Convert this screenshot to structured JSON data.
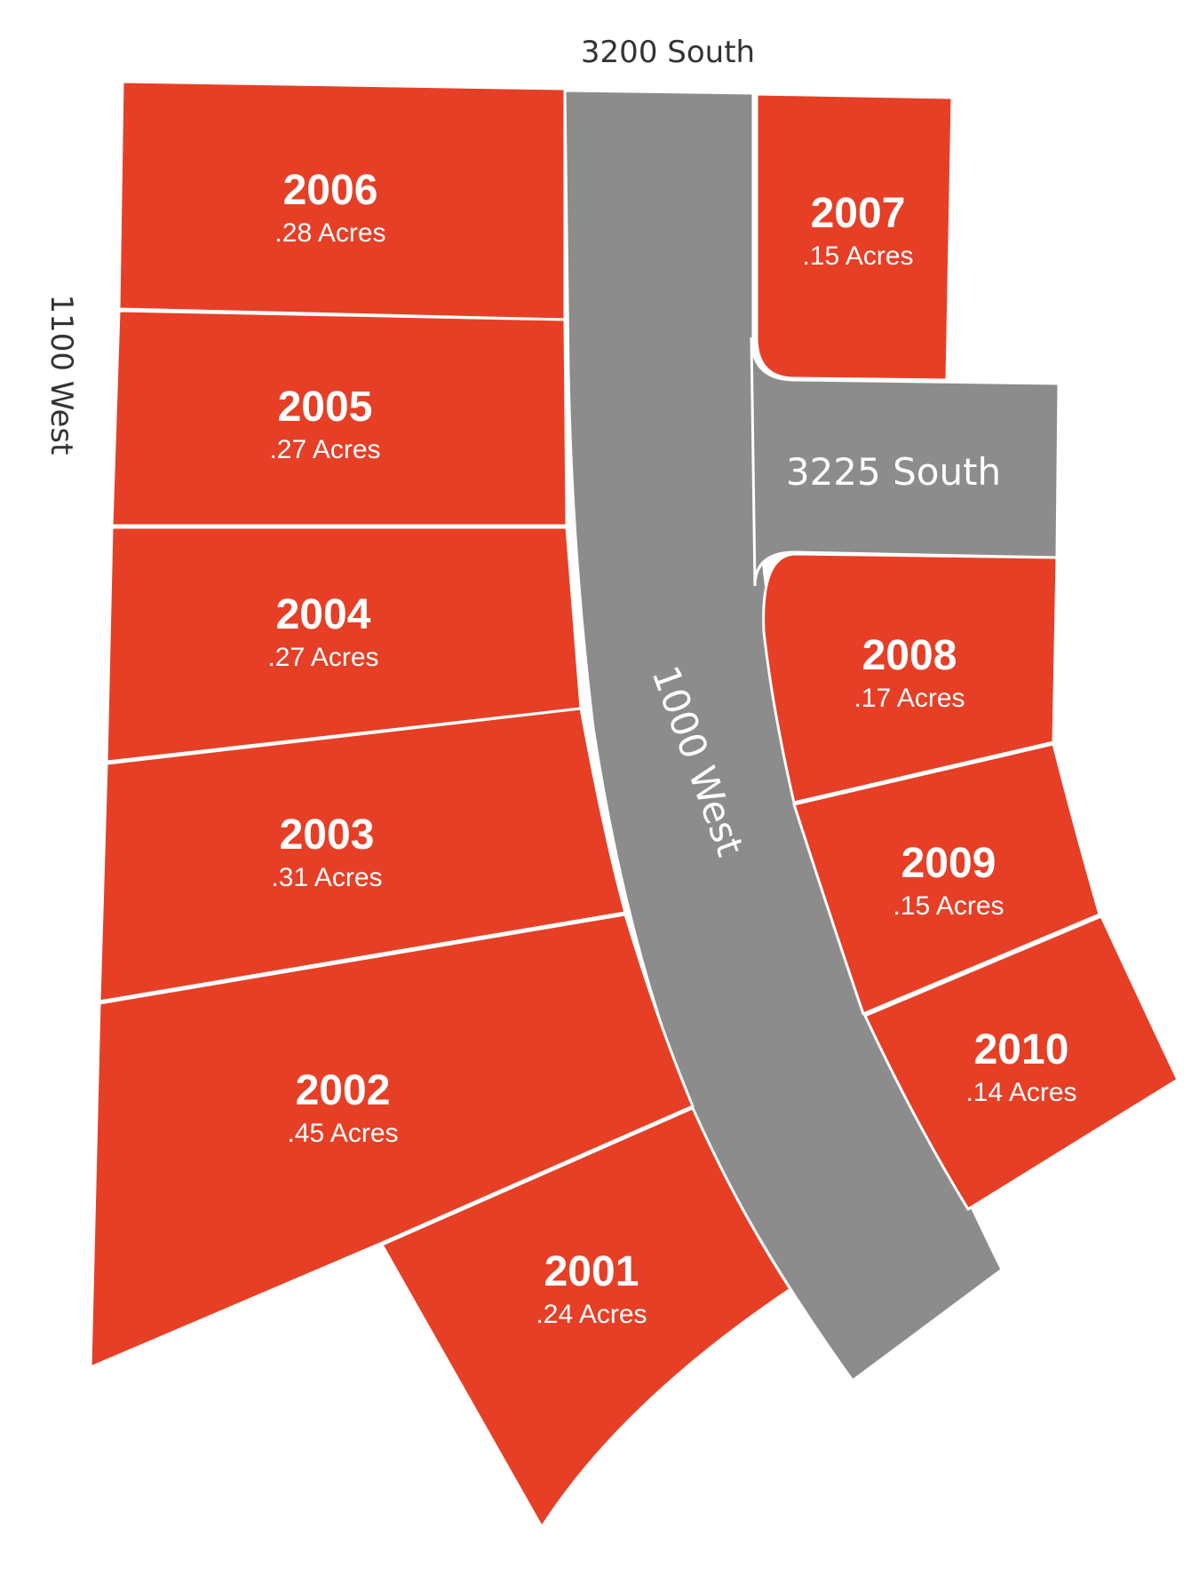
{
  "streets": {
    "north": "3200 South",
    "west": "1100 West",
    "main": "1000 West",
    "cross": "3225 South"
  },
  "colors": {
    "lot": "#e63f26",
    "road": "#8c8c8c",
    "text": "#ffffff"
  },
  "lots": [
    {
      "id": "2006",
      "area": ".28 Acres"
    },
    {
      "id": "2005",
      "area": ".27 Acres"
    },
    {
      "id": "2004",
      "area": ".27 Acres"
    },
    {
      "id": "2003",
      "area": ".31 Acres"
    },
    {
      "id": "2002",
      "area": ".45 Acres"
    },
    {
      "id": "2001",
      "area": ".24 Acres"
    },
    {
      "id": "2007",
      "area": ".15 Acres"
    },
    {
      "id": "2008",
      "area": ".17 Acres"
    },
    {
      "id": "2009",
      "area": ".15 Acres"
    },
    {
      "id": "2010",
      "area": ".14 Acres"
    }
  ]
}
